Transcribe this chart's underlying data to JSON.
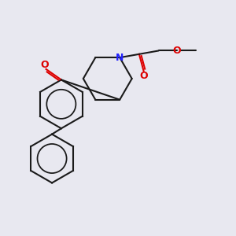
{
  "bg_color": "#e8e8f0",
  "bond_color": "#1a1a1a",
  "N_color": "#2222ff",
  "O_color": "#dd0000",
  "bond_width": 1.5,
  "figsize": [
    3.0,
    3.0
  ],
  "dpi": 100,
  "xlim": [
    0,
    10
  ],
  "ylim": [
    0,
    10
  ]
}
